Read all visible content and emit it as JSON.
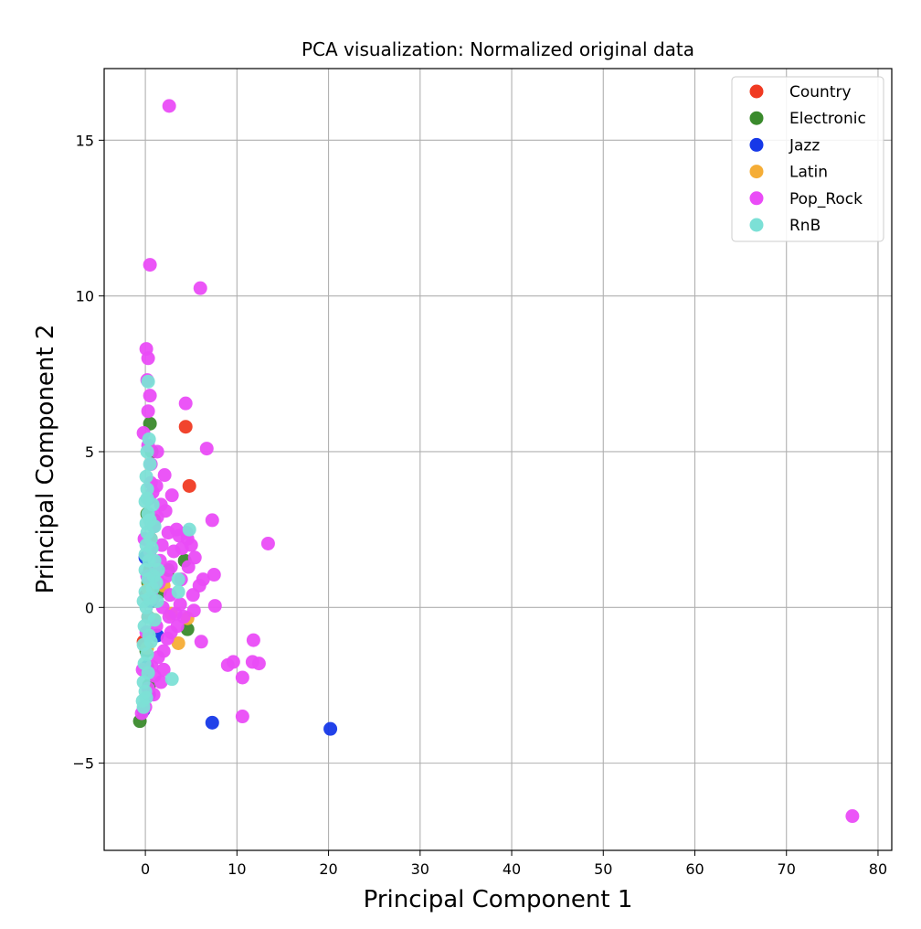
{
  "chart_data": {
    "type": "scatter",
    "title": "PCA visualization: Normalized original data",
    "xlabel": "Principal Component 1",
    "ylabel": "Principal Component 2",
    "xlim": [
      -4.5,
      81.5
    ],
    "ylim": [
      -7.8,
      17.3
    ],
    "xticks": [
      0,
      10,
      20,
      30,
      40,
      50,
      60,
      70,
      80
    ],
    "yticks": [
      -5,
      0,
      5,
      10,
      15
    ],
    "xtick_labels": [
      "0",
      "10",
      "20",
      "30",
      "40",
      "50",
      "60",
      "70",
      "80"
    ],
    "ytick_labels": [
      "−5",
      "0",
      "5",
      "10",
      "15"
    ],
    "grid": true,
    "legend_position": "top-right",
    "series": [
      {
        "name": "Country",
        "color": "#f03a22",
        "points": [
          [
            4.4,
            5.8
          ],
          [
            4.8,
            3.9
          ],
          [
            0.1,
            0.4
          ],
          [
            0.3,
            -0.3
          ],
          [
            -0.2,
            -1.1
          ],
          [
            0.5,
            1.2
          ],
          [
            0.2,
            -2.0
          ],
          [
            0.6,
            2.2
          ]
        ]
      },
      {
        "name": "Electronic",
        "color": "#3a8a2c",
        "points": [
          [
            -0.6,
            -3.65
          ],
          [
            0.5,
            5.9
          ],
          [
            0.7,
            5.0
          ],
          [
            4.3,
            1.5
          ],
          [
            4.6,
            -0.7
          ],
          [
            0.2,
            3.0
          ],
          [
            1.0,
            2.8
          ],
          [
            0.4,
            -2.5
          ],
          [
            1.6,
            0.5
          ],
          [
            0.1,
            -1.4
          ],
          [
            2.5,
            1.2
          ],
          [
            0.3,
            0.8
          ]
        ]
      },
      {
        "name": "Jazz",
        "color": "#1638e8",
        "points": [
          [
            7.3,
            -3.7
          ],
          [
            20.2,
            -3.9
          ],
          [
            0.4,
            -2.8
          ],
          [
            -0.2,
            -3.3
          ],
          [
            0.2,
            -1.9
          ],
          [
            0.6,
            0.2
          ],
          [
            1.3,
            -0.9
          ],
          [
            0.0,
            1.6
          ]
        ]
      },
      {
        "name": "Latin",
        "color": "#f5ad36",
        "points": [
          [
            3.6,
            -1.15
          ],
          [
            4.6,
            -0.35
          ],
          [
            0.3,
            0.6
          ],
          [
            1.0,
            -0.4
          ],
          [
            2.0,
            0.7
          ],
          [
            0.2,
            -1.3
          ],
          [
            2.8,
            -0.2
          ]
        ]
      },
      {
        "name": "Pop_Rock",
        "color": "#ea4cf7",
        "points": [
          [
            2.6,
            16.1
          ],
          [
            0.5,
            11.0
          ],
          [
            6.0,
            10.25
          ],
          [
            0.1,
            8.3
          ],
          [
            0.3,
            8.0
          ],
          [
            0.2,
            7.3
          ],
          [
            0.5,
            6.8
          ],
          [
            4.4,
            6.55
          ],
          [
            0.3,
            6.3
          ],
          [
            6.7,
            5.1
          ],
          [
            1.3,
            5.0
          ],
          [
            0.6,
            4.6
          ],
          [
            2.1,
            4.25
          ],
          [
            1.2,
            3.9
          ],
          [
            2.9,
            3.6
          ],
          [
            7.3,
            2.8
          ],
          [
            13.4,
            2.05
          ],
          [
            4.6,
            2.2
          ],
          [
            3.4,
            2.5
          ],
          [
            2.5,
            2.4
          ],
          [
            5.4,
            1.6
          ],
          [
            7.5,
            1.05
          ],
          [
            6.3,
            0.9
          ],
          [
            5.9,
            0.7
          ],
          [
            3.8,
            0.1
          ],
          [
            5.2,
            0.4
          ],
          [
            7.6,
            0.05
          ],
          [
            5.3,
            -0.1
          ],
          [
            2.8,
            -0.8
          ],
          [
            6.1,
            -1.1
          ],
          [
            11.8,
            -1.05
          ],
          [
            9.0,
            -1.85
          ],
          [
            9.6,
            -1.75
          ],
          [
            11.7,
            -1.75
          ],
          [
            12.4,
            -1.8
          ],
          [
            10.6,
            -2.25
          ],
          [
            10.6,
            -3.5
          ],
          [
            77.2,
            -6.7
          ],
          [
            1.7,
            -2.4
          ],
          [
            0.9,
            -2.8
          ],
          [
            0.0,
            -3.2
          ],
          [
            -0.4,
            -3.4
          ],
          [
            0.3,
            -2.6
          ],
          [
            1.4,
            -1.6
          ],
          [
            2.0,
            -1.4
          ],
          [
            1.2,
            -0.6
          ],
          [
            0.8,
            0.3
          ],
          [
            1.6,
            1.5
          ],
          [
            2.3,
            1.0
          ],
          [
            1.8,
            2.0
          ],
          [
            0.9,
            2.6
          ],
          [
            1.1,
            1.2
          ],
          [
            0.4,
            3.5
          ],
          [
            3.1,
            1.8
          ],
          [
            4.0,
            1.9
          ],
          [
            2.6,
            -0.3
          ],
          [
            3.5,
            -0.6
          ],
          [
            1.3,
            2.9
          ],
          [
            2.2,
            3.1
          ],
          [
            0.6,
            4.0
          ],
          [
            -0.2,
            5.6
          ],
          [
            0.3,
            5.2
          ],
          [
            4.7,
            1.3
          ],
          [
            3.9,
            0.9
          ],
          [
            2.0,
            -2.0
          ],
          [
            1.0,
            -2.2
          ],
          [
            0.2,
            1.0
          ],
          [
            -0.1,
            2.2
          ],
          [
            0.1,
            -0.8
          ],
          [
            0.7,
            -1.9
          ],
          [
            -0.3,
            -2.0
          ],
          [
            2.7,
            0.4
          ],
          [
            3.3,
            -0.2
          ],
          [
            4.2,
            -0.3
          ],
          [
            1.5,
            0.8
          ],
          [
            0.5,
            1.8
          ],
          [
            2.4,
            -1.0
          ],
          [
            1.9,
            0.0
          ],
          [
            4.5,
            2.4
          ],
          [
            5.0,
            2.0
          ],
          [
            3.7,
            2.3
          ],
          [
            1.7,
            3.3
          ],
          [
            0.8,
            3.7
          ],
          [
            2.8,
            1.3
          ]
        ]
      },
      {
        "name": "RnB",
        "color": "#7ce0d6",
        "points": [
          [
            0.3,
            7.25
          ],
          [
            0.4,
            5.4
          ],
          [
            0.2,
            5.0
          ],
          [
            0.5,
            4.6
          ],
          [
            0.1,
            4.2
          ],
          [
            0.2,
            3.8
          ],
          [
            0.0,
            3.4
          ],
          [
            0.8,
            3.3
          ],
          [
            0.3,
            3.0
          ],
          [
            0.1,
            2.7
          ],
          [
            0.2,
            2.4
          ],
          [
            0.6,
            2.2
          ],
          [
            1.0,
            2.6
          ],
          [
            4.8,
            2.5
          ],
          [
            0.1,
            2.0
          ],
          [
            0.0,
            1.7
          ],
          [
            0.4,
            1.5
          ],
          [
            1.0,
            1.5
          ],
          [
            1.4,
            1.2
          ],
          [
            0.0,
            1.2
          ],
          [
            0.3,
            0.9
          ],
          [
            1.2,
            0.8
          ],
          [
            3.6,
            0.9
          ],
          [
            3.6,
            0.5
          ],
          [
            0.0,
            0.5
          ],
          [
            0.5,
            0.3
          ],
          [
            1.3,
            0.2
          ],
          [
            0.1,
            0.0
          ],
          [
            0.3,
            -0.3
          ],
          [
            1.0,
            -0.4
          ],
          [
            -0.1,
            -0.6
          ],
          [
            0.4,
            -0.9
          ],
          [
            -0.2,
            -1.2
          ],
          [
            0.2,
            -1.5
          ],
          [
            -0.1,
            -1.8
          ],
          [
            0.3,
            -2.1
          ],
          [
            -0.2,
            -2.4
          ],
          [
            0.0,
            -2.7
          ],
          [
            -0.3,
            -3.0
          ],
          [
            -0.2,
            -3.2
          ],
          [
            2.9,
            -2.3
          ],
          [
            0.6,
            -1.1
          ],
          [
            0.8,
            0.6
          ],
          [
            0.7,
            1.9
          ],
          [
            0.5,
            2.8
          ],
          [
            0.2,
            3.5
          ],
          [
            0.9,
            1.0
          ],
          [
            -0.2,
            0.2
          ],
          [
            0.1,
            -2.9
          ]
        ]
      }
    ]
  }
}
